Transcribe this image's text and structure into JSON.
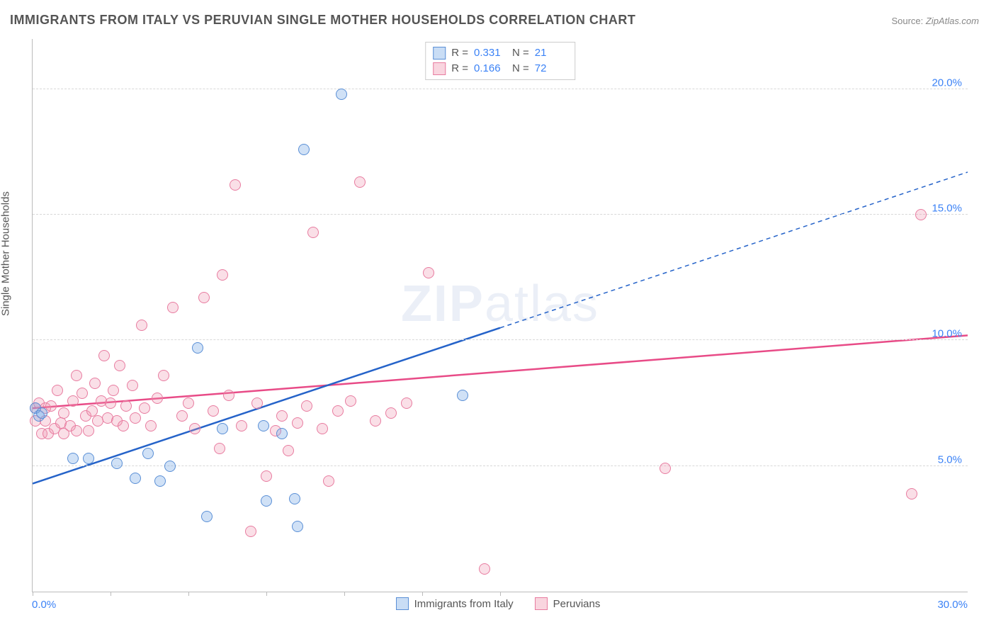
{
  "title": "IMMIGRANTS FROM ITALY VS PERUVIAN SINGLE MOTHER HOUSEHOLDS CORRELATION CHART",
  "source_prefix": "Source: ",
  "source_value": "ZipAtlas.com",
  "ylabel": "Single Mother Households",
  "watermark_bold": "ZIP",
  "watermark_light": "atlas",
  "chart": {
    "type": "scatter-with-regression",
    "xlim": [
      0,
      30
    ],
    "ylim": [
      0,
      22
    ],
    "yticks": [
      5,
      10,
      15,
      20
    ],
    "ytick_labels": [
      "5.0%",
      "10.0%",
      "15.0%",
      "20.0%"
    ],
    "xtick_positions": [
      0,
      2.5,
      5,
      7.5,
      10,
      12.5,
      15
    ],
    "xlabel_min": "0.0%",
    "xlabel_max": "30.0%",
    "background_color": "#ffffff",
    "grid_color": "#d8d8d8",
    "axis_color": "#bbbbbb",
    "tick_label_color": "#3b82f6",
    "tick_fontsize": 15,
    "series": {
      "blue": {
        "label": "Immigrants from Italy",
        "R_label": "R =",
        "R": "0.331",
        "N_label": "N =",
        "N": "21",
        "marker_fill": "rgba(120,170,230,0.35)",
        "marker_stroke": "#5a8fd6",
        "marker_radius": 8,
        "line_color": "#2563c9",
        "line_width": 2.5,
        "regression": {
          "x1": 0,
          "y1": 4.3,
          "x2_solid": 15,
          "y2_solid": 10.5,
          "x2_dash": 30,
          "y2_dash": 16.7
        },
        "points": [
          [
            0.1,
            7.3
          ],
          [
            0.2,
            7.0
          ],
          [
            0.3,
            7.1
          ],
          [
            1.3,
            5.3
          ],
          [
            1.8,
            5.3
          ],
          [
            2.7,
            5.1
          ],
          [
            3.3,
            4.5
          ],
          [
            3.7,
            5.5
          ],
          [
            4.1,
            4.4
          ],
          [
            4.4,
            5.0
          ],
          [
            5.3,
            9.7
          ],
          [
            5.6,
            3.0
          ],
          [
            6.1,
            6.5
          ],
          [
            7.4,
            6.6
          ],
          [
            7.5,
            3.6
          ],
          [
            8.0,
            6.3
          ],
          [
            8.4,
            3.7
          ],
          [
            8.5,
            2.6
          ],
          [
            8.7,
            17.6
          ],
          [
            9.9,
            19.8
          ],
          [
            13.8,
            7.8
          ]
        ]
      },
      "pink": {
        "label": "Peruvians",
        "R_label": "R =",
        "R": "0.166",
        "N_label": "N =",
        "N": "72",
        "marker_fill": "rgba(240,150,175,0.30)",
        "marker_stroke": "#e87ca0",
        "marker_radius": 8,
        "line_color": "#e84b87",
        "line_width": 2.5,
        "regression": {
          "x1": 0,
          "y1": 7.3,
          "x2_solid": 30,
          "y2_solid": 10.2
        },
        "points": [
          [
            0.1,
            6.8
          ],
          [
            0.1,
            7.3
          ],
          [
            0.2,
            7.5
          ],
          [
            0.3,
            6.3
          ],
          [
            0.4,
            6.8
          ],
          [
            0.4,
            7.3
          ],
          [
            0.5,
            6.3
          ],
          [
            0.6,
            7.4
          ],
          [
            0.7,
            6.5
          ],
          [
            0.8,
            8.0
          ],
          [
            0.9,
            6.7
          ],
          [
            1.0,
            6.3
          ],
          [
            1.0,
            7.1
          ],
          [
            1.2,
            6.6
          ],
          [
            1.3,
            7.6
          ],
          [
            1.4,
            6.4
          ],
          [
            1.4,
            8.6
          ],
          [
            1.6,
            7.9
          ],
          [
            1.7,
            7.0
          ],
          [
            1.8,
            6.4
          ],
          [
            1.9,
            7.2
          ],
          [
            2.0,
            8.3
          ],
          [
            2.1,
            6.8
          ],
          [
            2.2,
            7.6
          ],
          [
            2.3,
            9.4
          ],
          [
            2.4,
            6.9
          ],
          [
            2.5,
            7.5
          ],
          [
            2.6,
            8.0
          ],
          [
            2.7,
            6.8
          ],
          [
            2.8,
            9.0
          ],
          [
            2.9,
            6.6
          ],
          [
            3.0,
            7.4
          ],
          [
            3.2,
            8.2
          ],
          [
            3.3,
            6.9
          ],
          [
            3.5,
            10.6
          ],
          [
            3.6,
            7.3
          ],
          [
            3.8,
            6.6
          ],
          [
            4.0,
            7.7
          ],
          [
            4.2,
            8.6
          ],
          [
            4.5,
            11.3
          ],
          [
            4.8,
            7.0
          ],
          [
            5.0,
            7.5
          ],
          [
            5.2,
            6.5
          ],
          [
            5.5,
            11.7
          ],
          [
            5.8,
            7.2
          ],
          [
            6.0,
            5.7
          ],
          [
            6.1,
            12.6
          ],
          [
            6.3,
            7.8
          ],
          [
            6.5,
            16.2
          ],
          [
            6.7,
            6.6
          ],
          [
            7.0,
            2.4
          ],
          [
            7.2,
            7.5
          ],
          [
            7.5,
            4.6
          ],
          [
            7.8,
            6.4
          ],
          [
            8.0,
            7.0
          ],
          [
            8.2,
            5.6
          ],
          [
            8.5,
            6.7
          ],
          [
            8.8,
            7.4
          ],
          [
            9.0,
            14.3
          ],
          [
            9.3,
            6.5
          ],
          [
            9.5,
            4.4
          ],
          [
            9.8,
            7.2
          ],
          [
            10.2,
            7.6
          ],
          [
            10.5,
            16.3
          ],
          [
            11.0,
            6.8
          ],
          [
            11.5,
            7.1
          ],
          [
            12.7,
            12.7
          ],
          [
            14.5,
            0.9
          ],
          [
            20.3,
            4.9
          ],
          [
            28.2,
            3.9
          ],
          [
            28.5,
            15.0
          ],
          [
            12.0,
            7.5
          ]
        ]
      }
    }
  }
}
